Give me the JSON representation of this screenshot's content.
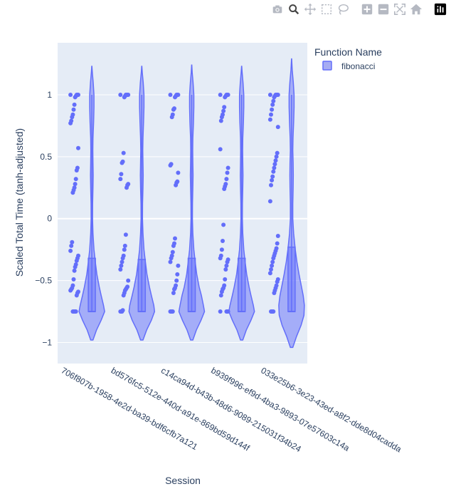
{
  "modebar": {
    "buttons": [
      {
        "name": "download-plot-button",
        "icon": "camera-icon",
        "active": false
      },
      {
        "name": "zoom-button",
        "icon": "zoom-icon",
        "active": true
      },
      {
        "name": "pan-button",
        "icon": "pan-icon",
        "active": false
      },
      {
        "name": "box-select-button",
        "icon": "box-select-icon",
        "active": false
      },
      {
        "name": "lasso-select-button",
        "icon": "lasso-icon",
        "active": false
      },
      {
        "name": "zoom-in-button",
        "icon": "zoom-in-icon",
        "active": false
      },
      {
        "name": "zoom-out-button",
        "icon": "zoom-out-icon",
        "active": false
      },
      {
        "name": "autoscale-button",
        "icon": "autoscale-icon",
        "active": false
      },
      {
        "name": "reset-axes-button",
        "icon": "home-icon",
        "active": false
      },
      {
        "name": "plotly-logo-button",
        "icon": "plotly-logo-icon",
        "active": false
      }
    ]
  },
  "chart_data": {
    "type": "violin",
    "xlabel": "Session",
    "ylabel": "Scaled Total Time (tanh-adjusted)",
    "ylim": [
      -1.17,
      1.42
    ],
    "yticks": [
      -1,
      -0.5,
      0,
      0.5,
      1
    ],
    "ytick_labels": [
      "−1",
      "−0.5",
      "0",
      "0.5",
      "1"
    ],
    "grid": true,
    "legend": {
      "title": "Function Name",
      "position": "top-right",
      "entries": [
        {
          "name": "fibonacci",
          "color": "#636efa"
        }
      ]
    },
    "colors": {
      "series": "#636efa",
      "fill": "#a6acf2",
      "plot_bg": "#e5ecf6",
      "grid": "#ffffff",
      "text": "#2a3f5f"
    },
    "categories": [
      "706f807b-1958-4e2d-ba39-bdf6cfb7a121",
      "bd576fc5-512e-440d-a91e-869bd59d144f",
      "c14ca94d-b43b-48d6-9089-215031f34b24",
      "b939f996-ef9d-4ba3-9893-07e57603c14a",
      "033e25b6-3e23-43ed-a8f2-dde8d04cadda"
    ],
    "series": [
      {
        "name": "fibonacci",
        "violins": [
          {
            "box": {
              "q1": -0.75,
              "median": -0.75,
              "q3": -0.32
            },
            "whisker": {
              "low": -0.75,
              "high": 1.0
            },
            "kde_range": [
              -0.98,
              1.23
            ],
            "kde": [
              [
                -0.98,
                0.3
              ],
              [
                -0.9,
                1.2
              ],
              [
                -0.82,
                2.4
              ],
              [
                -0.75,
                3.3
              ],
              [
                -0.7,
                3.0
              ],
              [
                -0.62,
                2.4
              ],
              [
                -0.55,
                1.9
              ],
              [
                -0.45,
                1.3
              ],
              [
                -0.35,
                0.9
              ],
              [
                -0.25,
                0.55
              ],
              [
                -0.12,
                0.3
              ],
              [
                0.0,
                0.18
              ],
              [
                0.12,
                0.2
              ],
              [
                0.25,
                0.3
              ],
              [
                0.35,
                0.35
              ],
              [
                0.45,
                0.3
              ],
              [
                0.55,
                0.25
              ],
              [
                0.65,
                0.3
              ],
              [
                0.78,
                0.45
              ],
              [
                0.9,
                0.55
              ],
              [
                1.0,
                0.55
              ],
              [
                1.1,
                0.35
              ],
              [
                1.18,
                0.12
              ],
              [
                1.23,
                0.02
              ]
            ],
            "points": [
              1.0,
              1.0,
              1.0,
              1.0,
              0.99,
              0.98,
              0.92,
              0.88,
              0.84,
              0.82,
              0.79,
              0.77,
              0.57,
              0.41,
              0.39,
              0.32,
              0.28,
              0.25,
              0.23,
              0.21,
              -0.19,
              -0.22,
              -0.26,
              -0.3,
              -0.32,
              -0.34,
              -0.37,
              -0.39,
              -0.42,
              -0.49,
              -0.54,
              -0.56,
              -0.57,
              -0.58,
              -0.59,
              -0.6,
              -0.62,
              -0.75,
              -0.75,
              -0.75,
              -0.75,
              -0.75
            ]
          },
          {
            "box": {
              "q1": -0.75,
              "median": -0.75,
              "q3": -0.33
            },
            "whisker": {
              "low": -0.75,
              "high": 1.0
            },
            "kde_range": [
              -0.98,
              1.23
            ],
            "kde": [
              [
                -0.98,
                0.3
              ],
              [
                -0.9,
                1.2
              ],
              [
                -0.82,
                2.4
              ],
              [
                -0.75,
                3.2
              ],
              [
                -0.7,
                3.0
              ],
              [
                -0.62,
                2.4
              ],
              [
                -0.55,
                1.9
              ],
              [
                -0.45,
                1.3
              ],
              [
                -0.35,
                0.9
              ],
              [
                -0.25,
                0.55
              ],
              [
                -0.12,
                0.3
              ],
              [
                0.0,
                0.18
              ],
              [
                0.12,
                0.2
              ],
              [
                0.25,
                0.3
              ],
              [
                0.35,
                0.35
              ],
              [
                0.45,
                0.3
              ],
              [
                0.55,
                0.25
              ],
              [
                0.65,
                0.3
              ],
              [
                0.78,
                0.45
              ],
              [
                0.9,
                0.55
              ],
              [
                1.0,
                0.55
              ],
              [
                1.1,
                0.35
              ],
              [
                1.18,
                0.12
              ],
              [
                1.23,
                0.02
              ]
            ],
            "points": [
              1.0,
              1.0,
              1.0,
              1.0,
              1.0,
              0.99,
              0.98,
              0.53,
              0.46,
              0.45,
              0.36,
              0.32,
              0.28,
              0.27,
              0.25,
              -0.13,
              -0.22,
              -0.25,
              -0.3,
              -0.32,
              -0.35,
              -0.38,
              -0.41,
              -0.5,
              -0.55,
              -0.56,
              -0.57,
              -0.58,
              -0.6,
              -0.62,
              -0.74,
              -0.75,
              -0.75,
              -0.75
            ]
          },
          {
            "box": {
              "q1": -0.75,
              "median": -0.75,
              "q3": -0.32
            },
            "whisker": {
              "low": -0.75,
              "high": 1.0
            },
            "kde_range": [
              -0.98,
              1.24
            ],
            "kde": [
              [
                -0.98,
                0.3
              ],
              [
                -0.9,
                1.2
              ],
              [
                -0.82,
                2.4
              ],
              [
                -0.75,
                3.3
              ],
              [
                -0.7,
                3.0
              ],
              [
                -0.62,
                2.5
              ],
              [
                -0.55,
                1.9
              ],
              [
                -0.45,
                1.3
              ],
              [
                -0.35,
                0.9
              ],
              [
                -0.25,
                0.55
              ],
              [
                -0.12,
                0.3
              ],
              [
                0.0,
                0.18
              ],
              [
                0.12,
                0.2
              ],
              [
                0.25,
                0.3
              ],
              [
                0.35,
                0.35
              ],
              [
                0.45,
                0.3
              ],
              [
                0.55,
                0.25
              ],
              [
                0.65,
                0.3
              ],
              [
                0.78,
                0.45
              ],
              [
                0.9,
                0.55
              ],
              [
                1.0,
                0.55
              ],
              [
                1.1,
                0.35
              ],
              [
                1.18,
                0.12
              ],
              [
                1.24,
                0.02
              ]
            ],
            "points": [
              1.0,
              1.0,
              1.0,
              1.0,
              0.99,
              0.98,
              0.89,
              0.88,
              0.84,
              0.82,
              0.44,
              0.43,
              0.37,
              0.3,
              0.29,
              0.27,
              -0.16,
              -0.2,
              -0.22,
              -0.27,
              -0.3,
              -0.32,
              -0.35,
              -0.38,
              -0.45,
              -0.5,
              -0.54,
              -0.56,
              -0.57,
              -0.6,
              -0.75,
              -0.75,
              -0.75,
              -0.75
            ]
          },
          {
            "box": {
              "q1": -0.75,
              "median": -0.75,
              "q3": -0.32
            },
            "whisker": {
              "low": -0.75,
              "high": 1.0
            },
            "kde_range": [
              -0.98,
              1.23
            ],
            "kde": [
              [
                -0.98,
                0.3
              ],
              [
                -0.9,
                1.2
              ],
              [
                -0.82,
                2.4
              ],
              [
                -0.75,
                3.3
              ],
              [
                -0.7,
                3.0
              ],
              [
                -0.62,
                2.4
              ],
              [
                -0.55,
                1.9
              ],
              [
                -0.45,
                1.3
              ],
              [
                -0.35,
                0.9
              ],
              [
                -0.25,
                0.55
              ],
              [
                -0.12,
                0.3
              ],
              [
                0.0,
                0.18
              ],
              [
                0.12,
                0.2
              ],
              [
                0.25,
                0.3
              ],
              [
                0.35,
                0.35
              ],
              [
                0.45,
                0.3
              ],
              [
                0.55,
                0.25
              ],
              [
                0.65,
                0.3
              ],
              [
                0.78,
                0.45
              ],
              [
                0.9,
                0.55
              ],
              [
                1.0,
                0.55
              ],
              [
                1.1,
                0.35
              ],
              [
                1.18,
                0.12
              ],
              [
                1.23,
                0.02
              ]
            ],
            "points": [
              1.0,
              1.0,
              1.0,
              1.0,
              0.99,
              0.98,
              0.9,
              0.87,
              0.84,
              0.82,
              0.79,
              0.56,
              0.41,
              0.37,
              0.32,
              0.28,
              0.26,
              0.24,
              -0.05,
              -0.18,
              -0.25,
              -0.3,
              -0.32,
              -0.33,
              -0.35,
              -0.38,
              -0.41,
              -0.49,
              -0.54,
              -0.56,
              -0.57,
              -0.59,
              -0.62,
              -0.75,
              -0.75,
              -0.75,
              -0.75
            ]
          },
          {
            "box": {
              "q1": -0.75,
              "median": -0.75,
              "q3": -0.23
            },
            "whisker": {
              "low": -0.75,
              "high": 1.0
            },
            "kde_range": [
              -1.04,
              1.29
            ],
            "kde": [
              [
                -1.04,
                0.3
              ],
              [
                -0.95,
                1.2
              ],
              [
                -0.86,
                2.3
              ],
              [
                -0.78,
                3.0
              ],
              [
                -0.7,
                3.1
              ],
              [
                -0.62,
                2.8
              ],
              [
                -0.55,
                2.4
              ],
              [
                -0.45,
                1.8
              ],
              [
                -0.35,
                1.3
              ],
              [
                -0.25,
                0.9
              ],
              [
                -0.12,
                0.5
              ],
              [
                0.0,
                0.3
              ],
              [
                0.12,
                0.3
              ],
              [
                0.25,
                0.38
              ],
              [
                0.35,
                0.42
              ],
              [
                0.45,
                0.38
              ],
              [
                0.55,
                0.3
              ],
              [
                0.65,
                0.35
              ],
              [
                0.78,
                0.5
              ],
              [
                0.9,
                0.6
              ],
              [
                1.0,
                0.6
              ],
              [
                1.1,
                0.42
              ],
              [
                1.2,
                0.15
              ],
              [
                1.29,
                0.02
              ]
            ],
            "points": [
              1.0,
              1.0,
              1.0,
              1.0,
              1.0,
              0.99,
              0.98,
              0.95,
              0.92,
              0.88,
              0.84,
              0.8,
              0.74,
              0.53,
              0.5,
              0.47,
              0.44,
              0.41,
              0.38,
              0.34,
              0.31,
              0.27,
              0.14,
              -0.14,
              -0.2,
              -0.24,
              -0.26,
              -0.28,
              -0.3,
              -0.32,
              -0.35,
              -0.38,
              -0.41,
              -0.44,
              -0.49,
              -0.51,
              -0.54,
              -0.56,
              -0.58,
              -0.6,
              -0.75,
              -0.75,
              -0.75,
              -0.75
            ]
          }
        ]
      }
    ]
  }
}
